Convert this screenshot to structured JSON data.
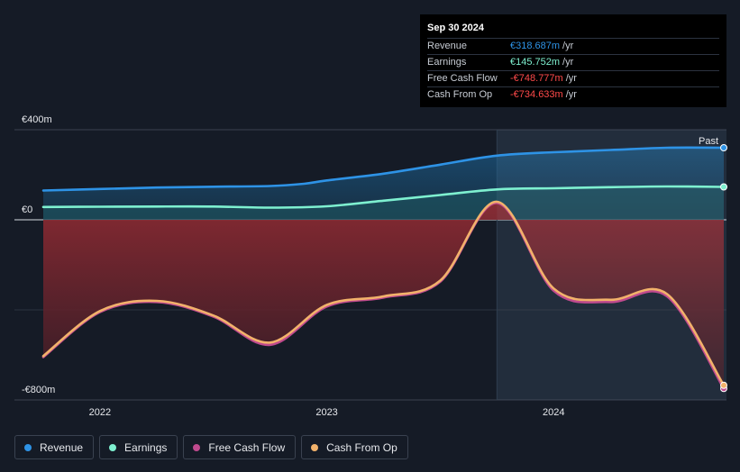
{
  "chart_data": {
    "type": "line",
    "title": "",
    "x_unit": "year",
    "xlim": [
      2021.75,
      2024.75
    ],
    "ylim": [
      -800,
      400
    ],
    "y_ticks": [
      {
        "value": 400,
        "label": "€400m"
      },
      {
        "value": 0,
        "label": "€0"
      },
      {
        "value": -800,
        "label": "-€800m"
      }
    ],
    "x_ticks": [
      {
        "value": 2022,
        "label": "2022"
      },
      {
        "value": 2023,
        "label": "2023"
      },
      {
        "value": 2024,
        "label": "2024"
      }
    ],
    "past_start": 2023.75,
    "past_label": "Past",
    "series": [
      {
        "name": "Revenue",
        "color": "#2e93e6",
        "x": [
          2021.75,
          2022.0,
          2022.25,
          2022.5,
          2022.75,
          2022.9,
          2023.0,
          2023.25,
          2023.5,
          2023.75,
          2024.0,
          2024.25,
          2024.5,
          2024.75
        ],
        "values": [
          130,
          137,
          143,
          147,
          150,
          160,
          175,
          205,
          245,
          285,
          300,
          310,
          320,
          320
        ]
      },
      {
        "name": "Earnings",
        "color": "#7ef0d0",
        "x": [
          2021.75,
          2022.0,
          2022.25,
          2022.5,
          2022.75,
          2023.0,
          2023.25,
          2023.5,
          2023.75,
          2024.0,
          2024.25,
          2024.5,
          2024.75
        ],
        "values": [
          57,
          58,
          59,
          59,
          54,
          60,
          85,
          110,
          135,
          140,
          145,
          148,
          146
        ]
      },
      {
        "name": "Free Cash Flow",
        "color": "#c04a8e",
        "x": [
          2021.75,
          2022.0,
          2022.25,
          2022.5,
          2022.75,
          2023.0,
          2023.25,
          2023.5,
          2023.75,
          2024.0,
          2024.25,
          2024.5,
          2024.75
        ],
        "values": [
          -610,
          -410,
          -365,
          -430,
          -555,
          -385,
          -345,
          -275,
          75,
          -315,
          -365,
          -340,
          -749
        ]
      },
      {
        "name": "Cash From Op",
        "color": "#f2b26b",
        "x": [
          2021.75,
          2022.0,
          2022.25,
          2022.5,
          2022.75,
          2023.0,
          2023.25,
          2023.5,
          2023.75,
          2024.0,
          2024.25,
          2024.5,
          2024.75
        ],
        "values": [
          -605,
          -405,
          -360,
          -425,
          -545,
          -378,
          -340,
          -270,
          80,
          -305,
          -355,
          -330,
          -735
        ]
      }
    ]
  },
  "tooltip": {
    "date": "Sep 30 2024",
    "unit": "/yr",
    "rows": [
      {
        "label": "Revenue",
        "value": "€318.687m",
        "color": "#2e93e6"
      },
      {
        "label": "Earnings",
        "value": "€145.752m",
        "color": "#7ef0d0"
      },
      {
        "label": "Free Cash Flow",
        "value": "-€748.777m",
        "color": "#ff4a4a"
      },
      {
        "label": "Cash From Op",
        "value": "-€734.633m",
        "color": "#ff4a4a"
      }
    ]
  },
  "legend": [
    {
      "label": "Revenue",
      "color": "#2e93e6"
    },
    {
      "label": "Earnings",
      "color": "#7ef0d0"
    },
    {
      "label": "Free Cash Flow",
      "color": "#c04a8e"
    },
    {
      "label": "Cash From Op",
      "color": "#f2b26b"
    }
  ]
}
